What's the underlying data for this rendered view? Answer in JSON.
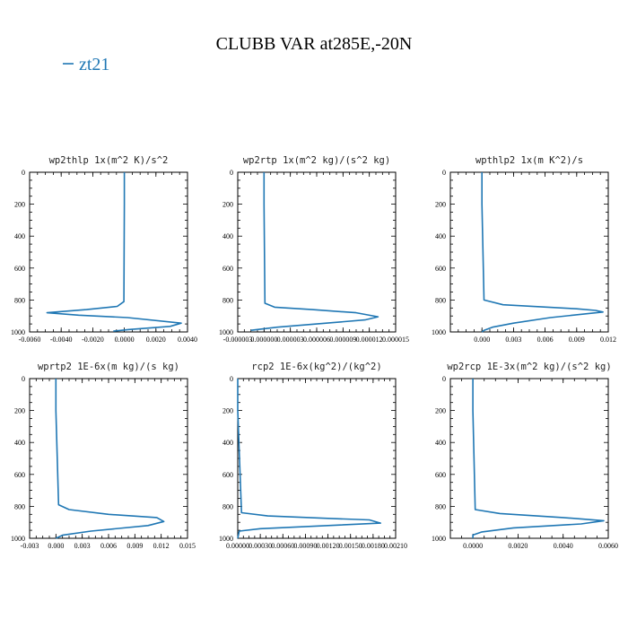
{
  "title": "CLUBB VAR at285E,-20N",
  "legend": {
    "label": "zt21",
    "color": "#1f77b4"
  },
  "chart_data": [
    {
      "type": "line",
      "title": "wp2thlp  1x(m^2 K)/s^2",
      "xlim": [
        -0.006,
        0.004
      ],
      "ylim": [
        0,
        1000
      ],
      "y_inverted": true,
      "xticks": [
        "-0.0060",
        "-0.0040",
        "-0.0020",
        "0.0000",
        "0.0020",
        "0.0040"
      ],
      "xtick_values": [
        -0.006,
        -0.004,
        -0.002,
        0,
        0.002,
        0.004
      ],
      "yticks": [
        "0",
        "200",
        "400",
        "600",
        "800",
        "1000"
      ],
      "series": [
        {
          "x": [
            0,
            0,
            -3e-05,
            -0.00045,
            -0.0024,
            -0.0049,
            -0.0029,
            0.0002,
            0.0036,
            0.0029,
            0.0003,
            -0.0007
          ],
          "y": [
            0,
            200,
            810,
            840,
            860,
            880,
            895,
            910,
            945,
            965,
            985,
            995
          ]
        }
      ]
    },
    {
      "type": "line",
      "title": "wp2rtp  1x(m^2 kg)/(s^2 kg)",
      "xlim": [
        -3e-06,
        1.5e-05
      ],
      "ylim": [
        0,
        1000
      ],
      "y_inverted": true,
      "xticks": [
        "-0.000003",
        "0.000000",
        "0.000003",
        "0.000006",
        "0.000009",
        "0.000012",
        "0.000015"
      ],
      "xtick_values": [
        -3e-06,
        0,
        3e-06,
        6e-06,
        9e-06,
        1.2e-05,
        1.5e-05
      ],
      "yticks": [
        "0",
        "200",
        "400",
        "600",
        "800",
        "1000"
      ],
      "series": [
        {
          "x": [
            0,
            0,
            1e-07,
            1.2e-06,
            5.5e-06,
            1.05e-05,
            1.3e-05,
            1.15e-05,
            6e-06,
            1.5e-06,
            -1.5e-06
          ],
          "y": [
            0,
            200,
            820,
            845,
            860,
            880,
            905,
            925,
            950,
            970,
            990
          ]
        }
      ]
    },
    {
      "type": "line",
      "title": "wpthlp2  1x(m K^2)/s",
      "xlim": [
        -0.003,
        0.012
      ],
      "ylim": [
        0,
        1000
      ],
      "y_inverted": true,
      "xticks": [
        "0.000",
        "0.003",
        "0.006",
        "0.009",
        "0.012"
      ],
      "xtick_values": [
        0,
        0.003,
        0.006,
        0.009,
        0.012
      ],
      "yticks": [
        "0",
        "200",
        "400",
        "600",
        "800",
        "1000"
      ],
      "series": [
        {
          "x": [
            0,
            0,
            0.0002,
            0.002,
            0.009,
            0.0108,
            0.0115,
            0.0065,
            0.003,
            0.001,
            0.0002,
            0
          ],
          "y": [
            0,
            200,
            800,
            830,
            855,
            865,
            875,
            910,
            945,
            970,
            990,
            1000
          ]
        }
      ]
    },
    {
      "type": "line",
      "title": "wprtp2  1E-6x(m kg)/(s kg)",
      "xlim": [
        -0.003,
        0.015
      ],
      "ylim": [
        0,
        1000
      ],
      "y_inverted": true,
      "xticks": [
        "-0.003",
        "0.000",
        "0.003",
        "0.006",
        "0.009",
        "0.012",
        "0.015"
      ],
      "xtick_values": [
        -0.003,
        0,
        0.003,
        0.006,
        0.009,
        0.012,
        0.015
      ],
      "yticks": [
        "0",
        "200",
        "400",
        "600",
        "800",
        "1000"
      ],
      "series": [
        {
          "x": [
            0,
            0,
            0.0003,
            0.0015,
            0.006,
            0.0115,
            0.0123,
            0.0105,
            0.004,
            0.0008,
            0
          ],
          "y": [
            0,
            200,
            790,
            820,
            850,
            870,
            895,
            920,
            955,
            980,
            1000
          ]
        }
      ]
    },
    {
      "type": "line",
      "title": "rcp2  1E-6x(kg^2)/(kg^2)",
      "xlim": [
        0,
        0.0021
      ],
      "ylim": [
        0,
        1000
      ],
      "y_inverted": true,
      "xticks": [
        "0.00000",
        "0.00030",
        "0.00060",
        "0.00090",
        "0.00120",
        "0.00150",
        "0.00180",
        "0.00210"
      ],
      "xtick_values": [
        0,
        0.0003,
        0.0006,
        0.0009,
        0.0012,
        0.0015,
        0.0018,
        0.0021
      ],
      "yticks": [
        "0",
        "200",
        "400",
        "600",
        "800",
        "1000"
      ],
      "series": [
        {
          "x": [
            0,
            0,
            5e-05,
            0.0004,
            0.0012,
            0.00175,
            0.0019,
            0.0012,
            0.0003,
            2e-05,
            0
          ],
          "y": [
            0,
            200,
            840,
            860,
            875,
            885,
            905,
            920,
            940,
            955,
            1000
          ]
        }
      ]
    },
    {
      "type": "line",
      "title": "wp2rcp  1E-3x(m^2 kg)/(s^2 kg)",
      "xlim": [
        -0.001,
        0.006
      ],
      "ylim": [
        0,
        1000
      ],
      "y_inverted": true,
      "xticks": [
        "0.0000",
        "0.0020",
        "0.0040",
        "0.0060"
      ],
      "xtick_values": [
        0,
        0.002,
        0.004,
        0.006
      ],
      "yticks": [
        "0",
        "200",
        "400",
        "600",
        "800",
        "1000"
      ],
      "series": [
        {
          "x": [
            0,
            0,
            0.0001,
            0.0012,
            0.004,
            0.0058,
            0.0048,
            0.0018,
            0.0004,
            0,
            0
          ],
          "y": [
            0,
            200,
            820,
            845,
            870,
            890,
            910,
            935,
            960,
            980,
            1000
          ]
        }
      ]
    }
  ]
}
